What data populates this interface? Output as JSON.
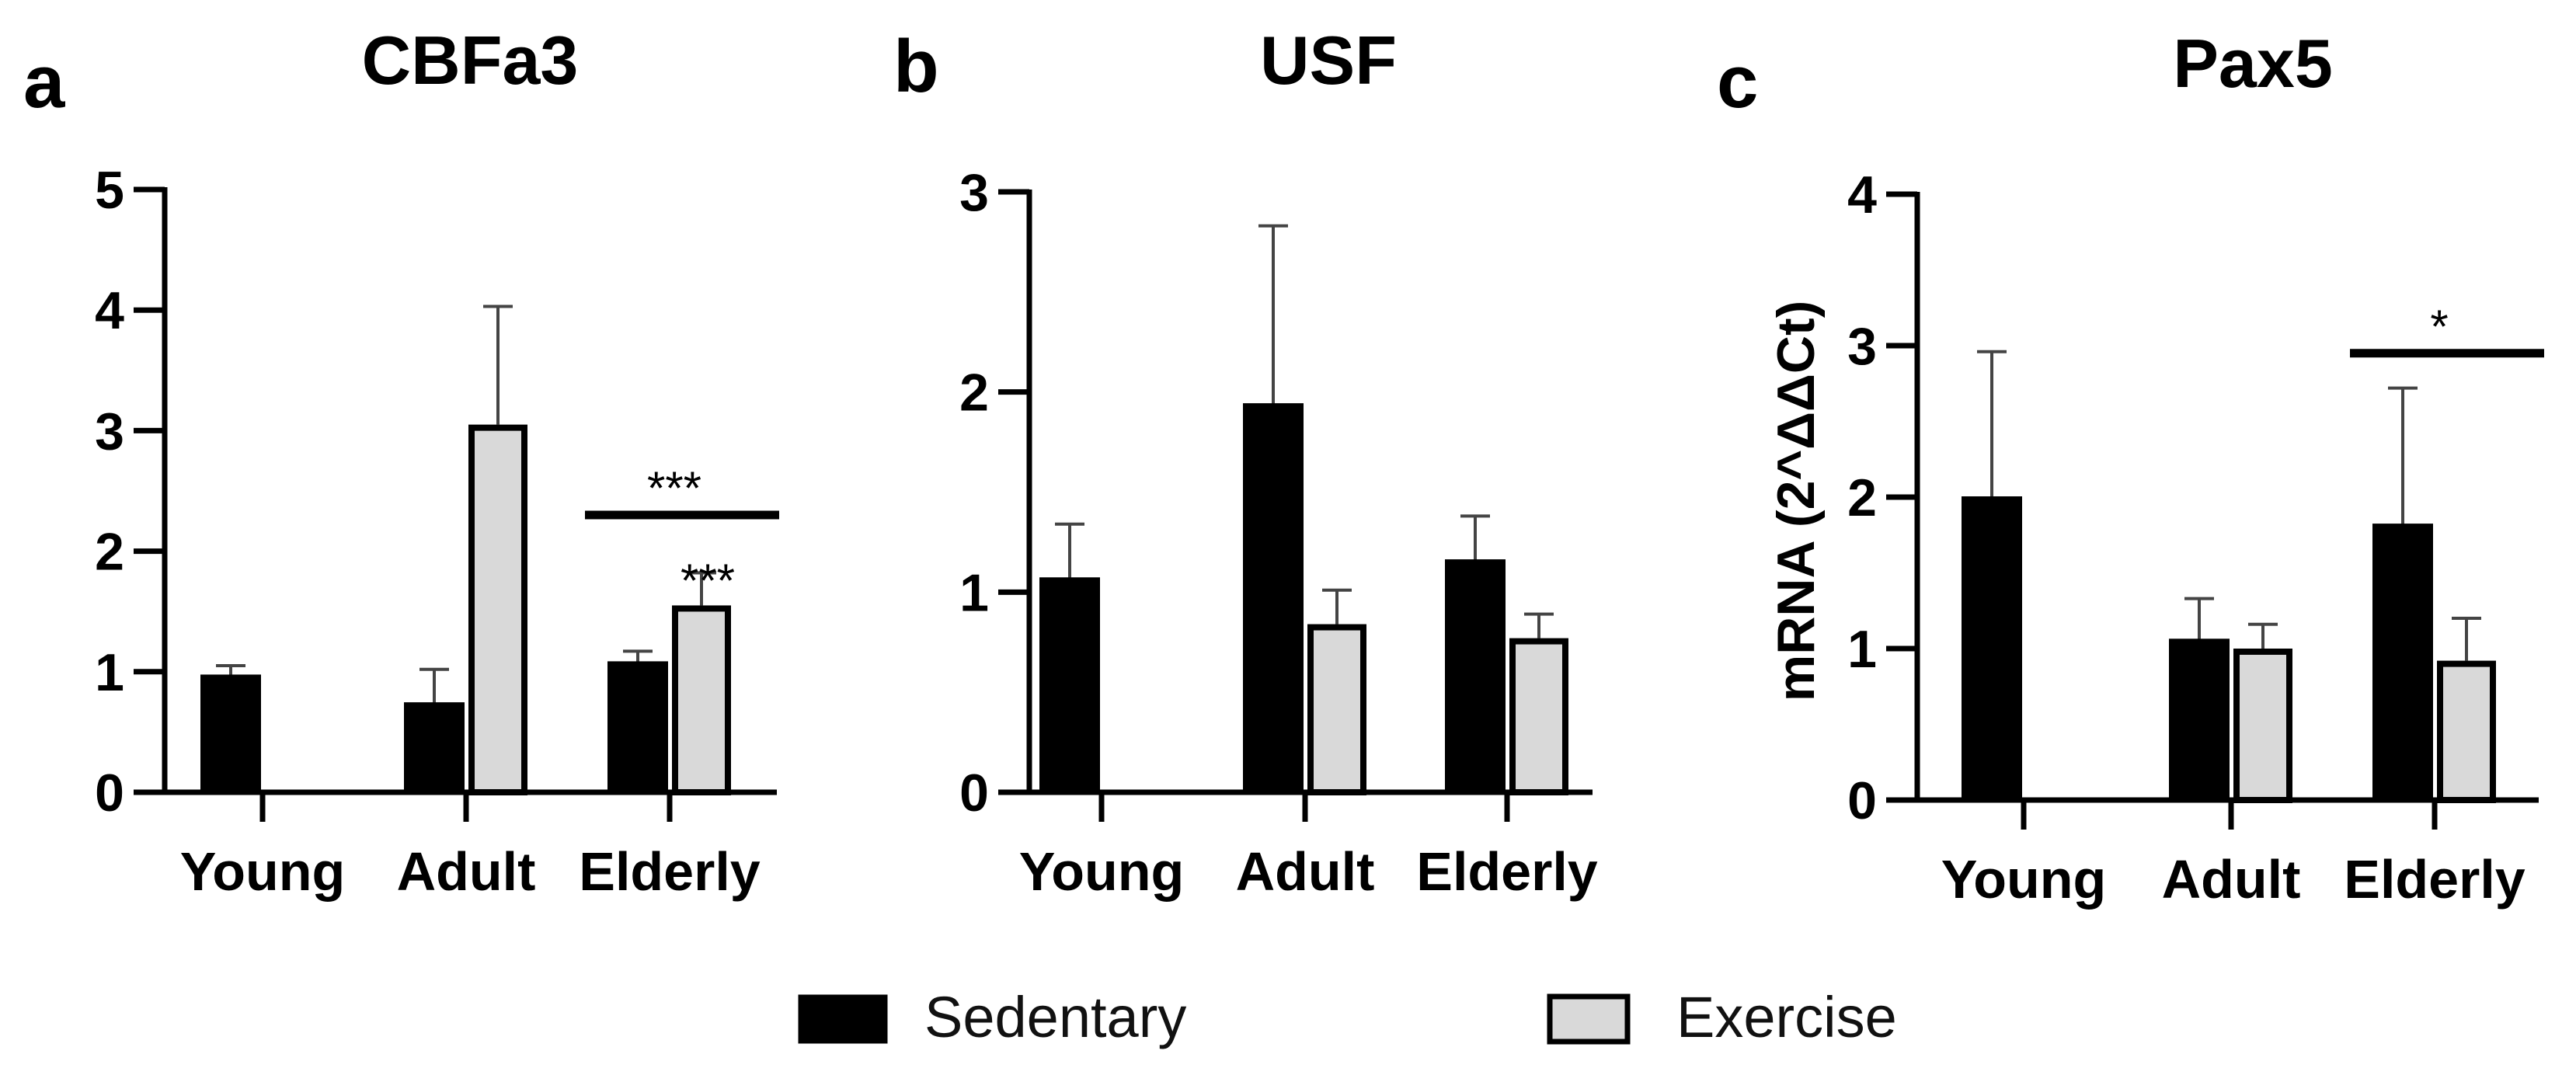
{
  "chart_data": [
    {
      "type": "bar",
      "panel_letter": "a",
      "title": "CBFa3",
      "ylabel": "",
      "categories": [
        "Young",
        "Adult",
        "Elderly"
      ],
      "ylim": [
        0,
        5
      ],
      "yticks": [
        "0",
        "1",
        "2",
        "3",
        "4",
        "5"
      ],
      "series": [
        {
          "name": "Sedentary",
          "values": [
            0.97,
            0.74,
            1.08
          ],
          "errors": [
            0.08,
            0.28,
            0.09
          ]
        },
        {
          "name": "Exercise",
          "values": [
            null,
            3.05,
            1.55
          ],
          "errors": [
            null,
            0.98,
            0.27
          ]
        }
      ],
      "annotations": [
        {
          "text": "***",
          "type": "bracket",
          "category": "Elderly",
          "y": 2.3
        },
        {
          "text": "***",
          "type": "bar",
          "category": "Elderly",
          "series": "Exercise",
          "y": 1.88
        }
      ]
    },
    {
      "type": "bar",
      "panel_letter": "b",
      "title": "USF",
      "ylabel": "",
      "categories": [
        "Young",
        "Adult",
        "Elderly"
      ],
      "ylim": [
        0,
        3
      ],
      "yticks": [
        "0",
        "1",
        "2",
        "3"
      ],
      "series": [
        {
          "name": "Sedentary",
          "values": [
            1.07,
            1.94,
            1.16
          ],
          "errors": [
            0.27,
            0.89,
            0.22
          ]
        },
        {
          "name": "Exercise",
          "values": [
            null,
            0.84,
            0.77
          ],
          "errors": [
            null,
            0.17,
            0.12
          ]
        }
      ],
      "annotations": []
    },
    {
      "type": "bar",
      "panel_letter": "c",
      "title": "Pax5",
      "ylabel": "mRNA (2^ΔΔCt)",
      "categories": [
        "Young",
        "Adult",
        "Elderly"
      ],
      "ylim": [
        0,
        4
      ],
      "yticks": [
        "0",
        "1",
        "2",
        "3",
        "4"
      ],
      "series": [
        {
          "name": "Sedentary",
          "values": [
            2.0,
            1.06,
            1.82
          ],
          "errors": [
            0.96,
            0.27,
            0.9
          ]
        },
        {
          "name": "Exercise",
          "values": [
            null,
            1.0,
            0.92
          ],
          "errors": [
            null,
            0.16,
            0.28
          ]
        }
      ],
      "annotations": [
        {
          "text": "*",
          "type": "bracket",
          "category": "Elderly",
          "y": 2.95
        }
      ]
    }
  ],
  "legend": {
    "placement": "bottom-center",
    "items": [
      {
        "label": "Sedentary",
        "color": "#000000"
      },
      {
        "label": "Exercise",
        "color": "#d9d9d9"
      }
    ]
  },
  "colors": {
    "sedentary": "#000000",
    "exercise": "#d9d9d9",
    "axis": "#000000"
  }
}
